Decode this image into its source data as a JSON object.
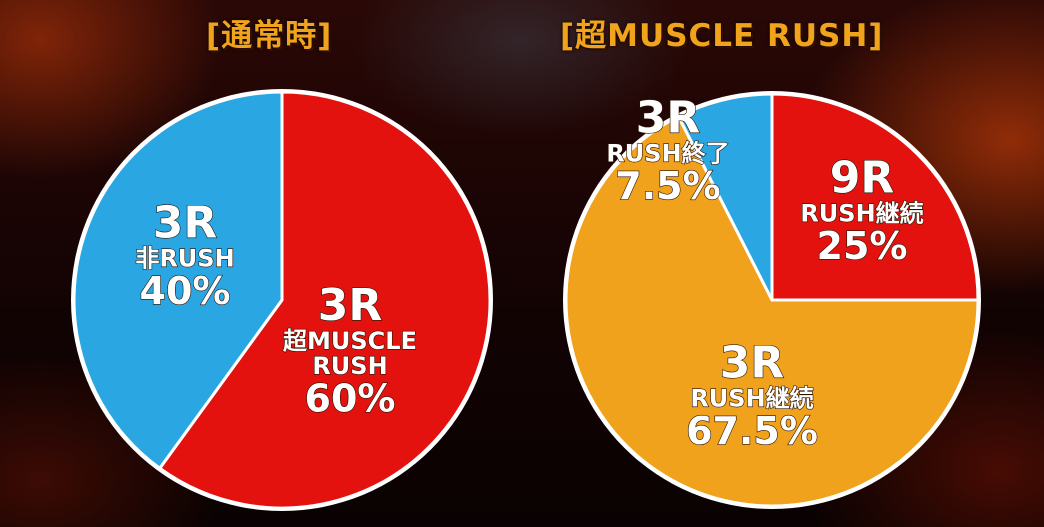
{
  "chart_data": [
    {
      "type": "pie",
      "title": "[通常時]",
      "slices": [
        {
          "round": "3R",
          "label": "超MUSCLE RUSH",
          "value": 60,
          "value_label": "60%",
          "color": "#e3120e"
        },
        {
          "round": "3R",
          "label": "非RUSH",
          "value": 40,
          "value_label": "40%",
          "color": "#2aa7e2"
        }
      ]
    },
    {
      "type": "pie",
      "title": "[超MUSCLE RUSH]",
      "slices": [
        {
          "round": "9R",
          "label": "RUSH継続",
          "value": 25,
          "value_label": "25%",
          "color": "#e3120e"
        },
        {
          "round": "3R",
          "label": "RUSH継続",
          "value": 67.5,
          "value_label": "67.5%",
          "color": "#f0a21c"
        },
        {
          "round": "3R",
          "label": "RUSH終了",
          "value": 7.5,
          "value_label": "7.5%",
          "color": "#2aa7e2"
        }
      ]
    }
  ]
}
